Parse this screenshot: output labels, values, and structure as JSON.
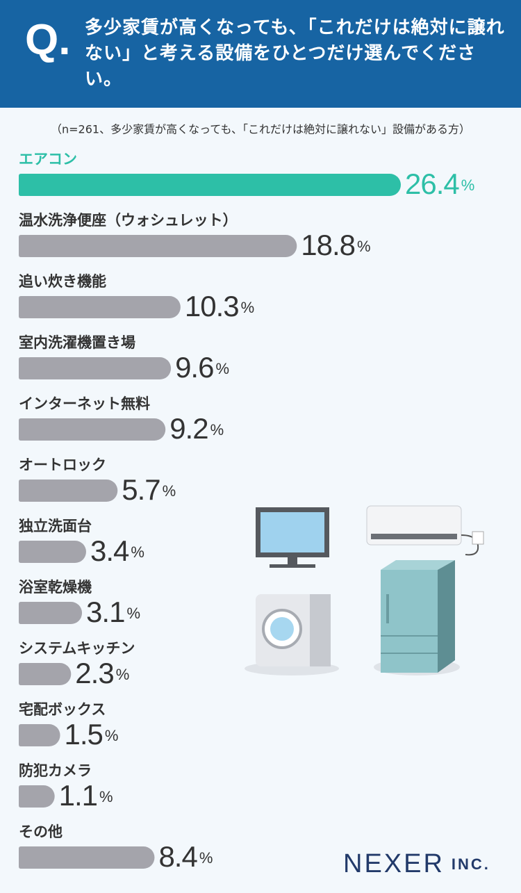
{
  "header": {
    "mark": "Q.",
    "question": "多少家賃が高くなっても、「これだけは絶対に譲れない」と考える設備をひとつだけ選んでください。"
  },
  "chart_data": {
    "type": "bar",
    "subtitle": "（n=261、多少家賃が高くなっても、「これだけは絶対に譲れない」設備がある方）",
    "categories": [
      "エアコン",
      "温水洗浄便座（ウォシュレット）",
      "追い炊き機能",
      "室内洗濯機置き場",
      "インターネット無料",
      "オートロック",
      "独立洗面台",
      "浴室乾燥機",
      "システムキッチン",
      "宅配ボックス",
      "防犯カメラ",
      "その他"
    ],
    "values": [
      26.4,
      18.8,
      10.3,
      9.6,
      9.2,
      5.7,
      3.4,
      3.1,
      2.3,
      1.5,
      1.1,
      8.4
    ],
    "unit": "%",
    "highlight_color": "#2dbfa7",
    "color": "#a4a4ab"
  },
  "logo": {
    "name": "NEXER",
    "suffix": "INC."
  }
}
